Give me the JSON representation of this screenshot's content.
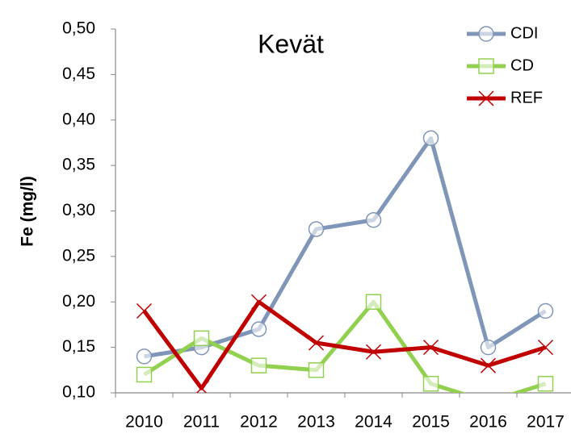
{
  "chart_data": {
    "type": "line",
    "title": "Kevät",
    "y_label": "Fe (mg/l)",
    "categories": [
      "2010",
      "2011",
      "2012",
      "2013",
      "2014",
      "2015",
      "2016",
      "2017"
    ],
    "series": [
      {
        "name": "CDI",
        "color": "#8096b8",
        "marker": "circle",
        "values": [
          0.14,
          0.15,
          0.17,
          0.28,
          0.29,
          0.38,
          0.15,
          0.19
        ]
      },
      {
        "name": "CD",
        "color": "#92d050",
        "marker": "square",
        "values": [
          0.12,
          0.16,
          0.13,
          0.125,
          0.2,
          0.11,
          0.09,
          0.11
        ]
      },
      {
        "name": "REF",
        "color": "#c00000",
        "marker": "x",
        "values": [
          0.19,
          0.105,
          0.2,
          0.155,
          0.145,
          0.15,
          0.13,
          0.15
        ]
      }
    ],
    "ylim": [
      0.1,
      0.5
    ],
    "yticks": [
      {
        "value": 0.1,
        "label": "0,10"
      },
      {
        "value": 0.15,
        "label": "0,15"
      },
      {
        "value": 0.2,
        "label": "0,20"
      },
      {
        "value": 0.25,
        "label": "0,25"
      },
      {
        "value": 0.3,
        "label": "0,30"
      },
      {
        "value": 0.35,
        "label": "0,35"
      },
      {
        "value": 0.4,
        "label": "0,40"
      },
      {
        "value": 0.45,
        "label": "0,45"
      },
      {
        "value": 0.5,
        "label": "0,50"
      }
    ],
    "grid": false,
    "legend": "top-right"
  }
}
